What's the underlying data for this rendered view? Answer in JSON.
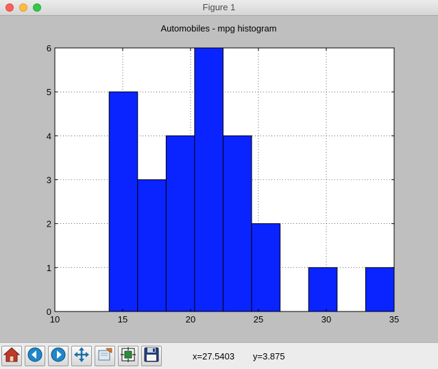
{
  "window": {
    "title": "Figure 1"
  },
  "toolbar": {
    "buttons": [
      {
        "name": "home-button",
        "icon": "home-icon"
      },
      {
        "name": "back-button",
        "icon": "back-arrow-icon"
      },
      {
        "name": "forward-button",
        "icon": "forward-arrow-icon"
      },
      {
        "name": "pan-button",
        "icon": "move-arrows-icon"
      },
      {
        "name": "zoom-button",
        "icon": "zoom-rect-icon"
      },
      {
        "name": "subplots-button",
        "icon": "subplots-icon"
      },
      {
        "name": "save-button",
        "icon": "floppy-disk-icon"
      }
    ],
    "coords_x": "x=27.5403",
    "coords_y": "y=3.875"
  },
  "chart_data": {
    "type": "bar",
    "title": "Automobiles - mpg histogram",
    "xlabel": "",
    "ylabel": "",
    "xlim": [
      10,
      35
    ],
    "ylim": [
      0,
      6
    ],
    "xticks": [
      10,
      15,
      20,
      25,
      30,
      35
    ],
    "yticks": [
      0,
      1,
      2,
      3,
      4,
      5,
      6
    ],
    "grid": true,
    "bar_color": "#0a24ff",
    "bins": [
      {
        "x0": 14.0,
        "x1": 16.1,
        "value": 5
      },
      {
        "x0": 16.1,
        "x1": 18.2,
        "value": 3
      },
      {
        "x0": 18.2,
        "x1": 20.3,
        "value": 4
      },
      {
        "x0": 20.3,
        "x1": 22.4,
        "value": 6
      },
      {
        "x0": 22.4,
        "x1": 24.5,
        "value": 4
      },
      {
        "x0": 24.5,
        "x1": 26.6,
        "value": 2
      },
      {
        "x0": 26.6,
        "x1": 28.7,
        "value": 0
      },
      {
        "x0": 28.7,
        "x1": 30.8,
        "value": 1
      },
      {
        "x0": 30.8,
        "x1": 32.9,
        "value": 0
      },
      {
        "x0": 32.9,
        "x1": 35.0,
        "value": 1
      }
    ]
  }
}
